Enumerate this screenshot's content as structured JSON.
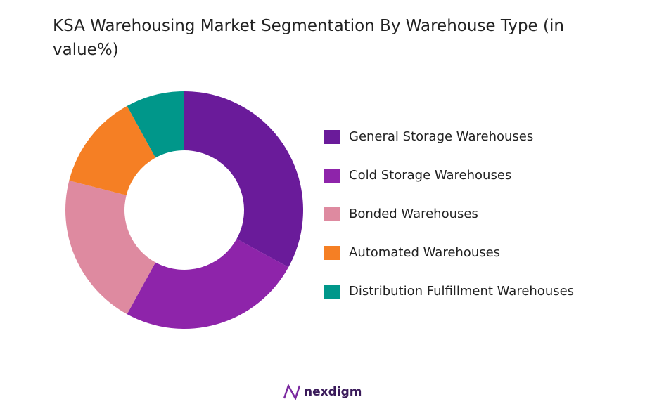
{
  "chart_data": {
    "type": "donut",
    "title": "KSA Warehousing Market Segmentation By Warehouse Type (in value%)",
    "categories": [
      "General Storage Warehouses",
      "Cold Storage Warehouses",
      "Bonded Warehouses",
      "Automated Warehouses",
      "Distribution Fulfillment Warehouses"
    ],
    "values": [
      33,
      25,
      21,
      13,
      8
    ],
    "colors": [
      "#6a1b9a",
      "#8e24aa",
      "#de8aa0",
      "#f57f24",
      "#00978a"
    ],
    "legend": "right"
  },
  "brand": "nexdigm"
}
